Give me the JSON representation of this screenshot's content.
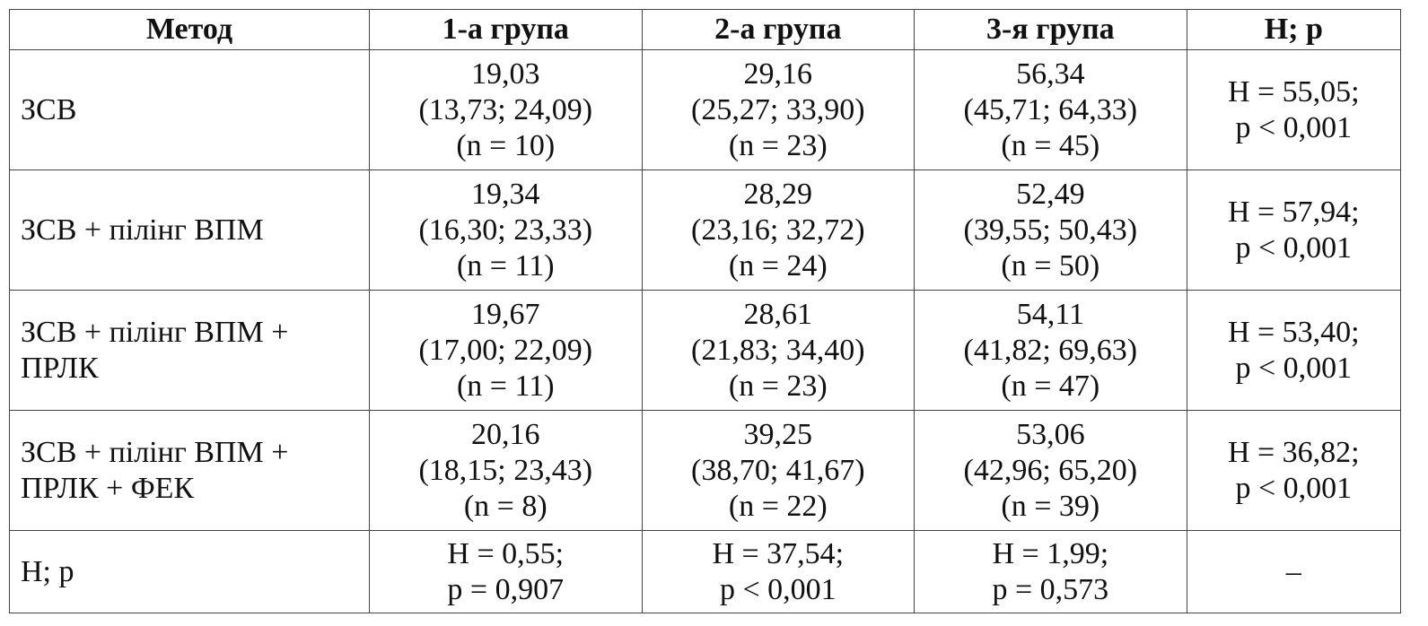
{
  "table": {
    "header": [
      "Метод",
      "1-а група",
      "2-а група",
      "3-я група",
      "H; p"
    ],
    "rows": [
      [
        "ЗСВ",
        [
          "19,03",
          "(13,73; 24,09)",
          "(n = 10)"
        ],
        [
          "29,16",
          "(25,27; 33,90)",
          "(n = 23)"
        ],
        [
          "56,34",
          "(45,71; 64,33)",
          "(n = 45)"
        ],
        [
          "H = 55,05;",
          "p < 0,001"
        ]
      ],
      [
        "ЗСВ + пілінг ВПМ",
        [
          "19,34",
          "(16,30; 23,33)",
          "(n = 11)"
        ],
        [
          "28,29",
          "(23,16; 32,72)",
          "(n = 24)"
        ],
        [
          "52,49",
          "(39,55; 50,43)",
          "(n = 50)"
        ],
        [
          "H = 57,94;",
          "p < 0,001"
        ]
      ],
      [
        "ЗСВ + пілінг ВПМ + ПРЛК",
        [
          "19,67",
          "(17,00; 22,09)",
          "(n = 11)"
        ],
        [
          "28,61",
          "(21,83; 34,40)",
          "(n = 23)"
        ],
        [
          "54,11",
          "(41,82; 69,63)",
          "(n = 47)"
        ],
        [
          "H = 53,40;",
          "p < 0,001"
        ]
      ],
      [
        "ЗСВ + пілінг ВПМ + ПРЛК + ФЕК",
        [
          "20,16",
          "(18,15; 23,43)",
          "(n = 8)"
        ],
        [
          "39,25",
          "(38,70; 41,67)",
          "(n = 22)"
        ],
        [
          "53,06",
          "(42,96; 65,20)",
          "(n = 39)"
        ],
        [
          "H = 36,82;",
          "p < 0,001"
        ]
      ],
      [
        "H; p",
        [
          "H = 0,55;",
          "p = 0,907"
        ],
        [
          "H = 37,54;",
          "p < 0,001"
        ],
        [
          "H = 1,99;",
          "p = 0,573"
        ],
        [
          "–"
        ]
      ]
    ]
  }
}
